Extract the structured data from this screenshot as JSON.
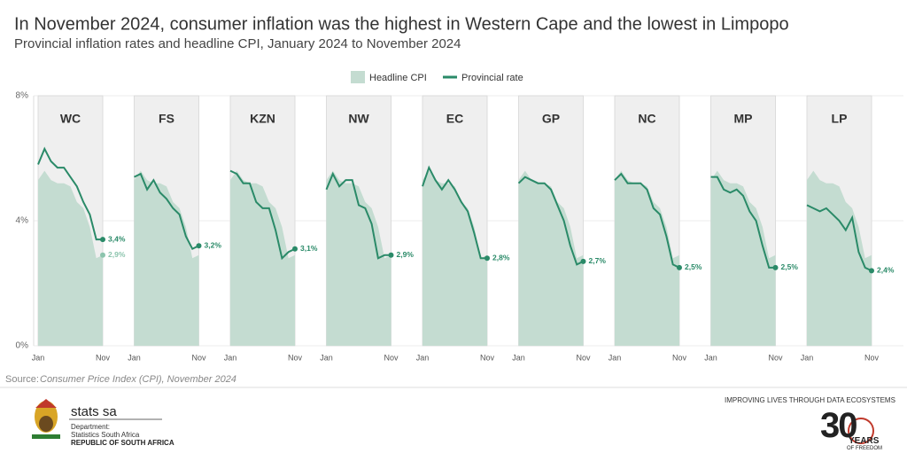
{
  "chart_data": {
    "type": "small-multiples",
    "title": "In November 2024, consumer inflation was the highest in Western Cape and the lowest in Limpopo",
    "subtitle": "Provincial inflation rates and headline CPI, January 2024 to November 2024",
    "categories": [
      "Jan",
      null,
      null,
      null,
      null,
      null,
      null,
      null,
      null,
      null,
      "Nov"
    ],
    "ylim": [
      0,
      8
    ],
    "yticks": [
      {
        "value": 0,
        "label": "0%"
      },
      {
        "value": 4,
        "label": "4%"
      },
      {
        "value": 8,
        "label": "8%"
      }
    ],
    "grid": true,
    "series": [
      {
        "name": "Headline CPI",
        "kind": "area",
        "color": "#c4dcd1",
        "values": [
          5.3,
          5.6,
          5.3,
          5.2,
          5.2,
          5.1,
          4.6,
          4.4,
          3.8,
          2.8,
          2.9
        ],
        "value_labels": [
          null,
          null,
          null,
          null,
          null,
          null,
          null,
          null,
          null,
          null,
          "2,9%"
        ]
      },
      {
        "name": "Provincial rate",
        "kind": "line",
        "color": "#2a8a68"
      }
    ],
    "panels": [
      {
        "name": "WC",
        "values": [
          5.8,
          6.3,
          5.9,
          5.7,
          5.7,
          5.4,
          5.1,
          4.6,
          4.2,
          3.4,
          3.4
        ],
        "value_labels": [
          null,
          null,
          null,
          null,
          null,
          null,
          null,
          null,
          null,
          null,
          "3,4%"
        ]
      },
      {
        "name": "FS",
        "values": [
          5.4,
          5.5,
          5.0,
          5.3,
          4.9,
          4.7,
          4.4,
          4.2,
          3.5,
          3.1,
          3.2
        ],
        "value_labels": [
          null,
          null,
          null,
          null,
          null,
          null,
          null,
          null,
          null,
          null,
          "3,2%"
        ]
      },
      {
        "name": "KZN",
        "values": [
          5.6,
          5.5,
          5.2,
          5.2,
          4.6,
          4.4,
          4.4,
          3.7,
          2.8,
          3.0,
          3.1
        ],
        "value_labels": [
          null,
          null,
          null,
          null,
          null,
          null,
          null,
          null,
          null,
          null,
          "3,1%"
        ]
      },
      {
        "name": "NW",
        "values": [
          5.0,
          5.5,
          5.1,
          5.3,
          5.3,
          4.5,
          4.4,
          3.9,
          2.8,
          2.9,
          2.9
        ],
        "value_labels": [
          null,
          null,
          null,
          null,
          null,
          null,
          null,
          null,
          null,
          null,
          "2,9%"
        ]
      },
      {
        "name": "EC",
        "values": [
          5.1,
          5.7,
          5.3,
          5.0,
          5.3,
          5.0,
          4.6,
          4.3,
          3.6,
          2.8,
          2.8
        ],
        "value_labels": [
          null,
          null,
          null,
          null,
          null,
          null,
          null,
          null,
          null,
          null,
          "2,8%"
        ]
      },
      {
        "name": "GP",
        "values": [
          5.2,
          5.4,
          5.3,
          5.2,
          5.2,
          5.0,
          4.5,
          4.0,
          3.2,
          2.6,
          2.7
        ],
        "value_labels": [
          null,
          null,
          null,
          null,
          null,
          null,
          null,
          null,
          null,
          null,
          "2,7%"
        ]
      },
      {
        "name": "NC",
        "values": [
          5.3,
          5.5,
          5.2,
          5.2,
          5.2,
          5.0,
          4.4,
          4.2,
          3.5,
          2.6,
          2.5
        ],
        "value_labels": [
          null,
          null,
          null,
          null,
          null,
          null,
          null,
          null,
          null,
          null,
          "2,5%"
        ]
      },
      {
        "name": "MP",
        "values": [
          5.4,
          5.4,
          5.0,
          4.9,
          5.0,
          4.8,
          4.3,
          4.0,
          3.2,
          2.5,
          2.5
        ],
        "value_labels": [
          null,
          null,
          null,
          null,
          null,
          null,
          null,
          null,
          null,
          null,
          "2,5%"
        ]
      },
      {
        "name": "LP",
        "values": [
          4.5,
          4.4,
          4.3,
          4.4,
          4.2,
          4.0,
          3.7,
          4.1,
          3.0,
          2.5,
          2.4
        ],
        "value_labels": [
          null,
          null,
          null,
          null,
          null,
          null,
          null,
          null,
          null,
          null,
          "2,4%"
        ]
      }
    ],
    "source_label": "Source:",
    "source": "Consumer Price Index (CPI), November 2024"
  },
  "footer": {
    "brand": "stats sa",
    "department": "Department:",
    "department_name": "Statistics South Africa",
    "country": "REPUBLIC OF SOUTH AFRICA",
    "tagline": "IMPROVING LIVES THROUGH DATA ECOSYSTEMS",
    "anniversary_number": "30",
    "anniversary_years": "YEARS",
    "anniversary_freedom": "OF FREEDOM"
  }
}
